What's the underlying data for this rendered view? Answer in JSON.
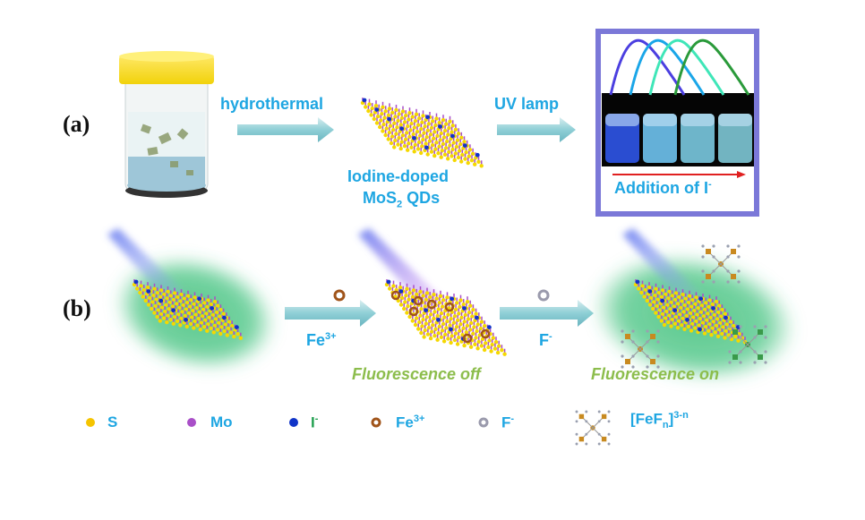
{
  "panel_a": {
    "label": "(a)",
    "step1": "hydrothermal",
    "step2": "UV lamp",
    "product_line1": "Iodine-doped",
    "product_line2_main": "MoS",
    "product_line2_sub": "2",
    "product_line2_rest": " QDs",
    "inset_caption_main": "Addition of I",
    "inset_caption_sup": "-",
    "inset_curve_colors": [
      "#4b3fe0",
      "#1aa6e8",
      "#3fe6b8",
      "#2a9a3a"
    ],
    "inset_border_color": "#7b78d8"
  },
  "panel_b": {
    "label": "(b)",
    "reagent1_main": "Fe",
    "reagent1_sup": "3+",
    "reagent2_main": "F",
    "reagent2_sup": "-",
    "state1": "Fluorescence off",
    "state2": "Fluorescence on"
  },
  "legend": {
    "items": [
      {
        "symbol": "S",
        "color": "#f5c400",
        "shape": "dot"
      },
      {
        "symbol": "Mo",
        "color": "#a94fc8",
        "shape": "dot"
      },
      {
        "symbol": "I",
        "sup": "-",
        "color": "#1034c8",
        "shape": "dot"
      },
      {
        "symbol": "Fe",
        "sup": "3+",
        "color": "#a0541a",
        "shape": "ring"
      },
      {
        "symbol": "F",
        "sup": "-",
        "color": "#9a9aac",
        "shape": "ring"
      }
    ],
    "complex_main": "[FeF",
    "complex_sub": "n",
    "complex_close": "]",
    "complex_sup": "3-n"
  },
  "colors": {
    "text_blue": "#1ea6e2",
    "text_green": "#8cbd4c",
    "glow": "#3cc07a",
    "arrow": "#8fcfd6"
  }
}
